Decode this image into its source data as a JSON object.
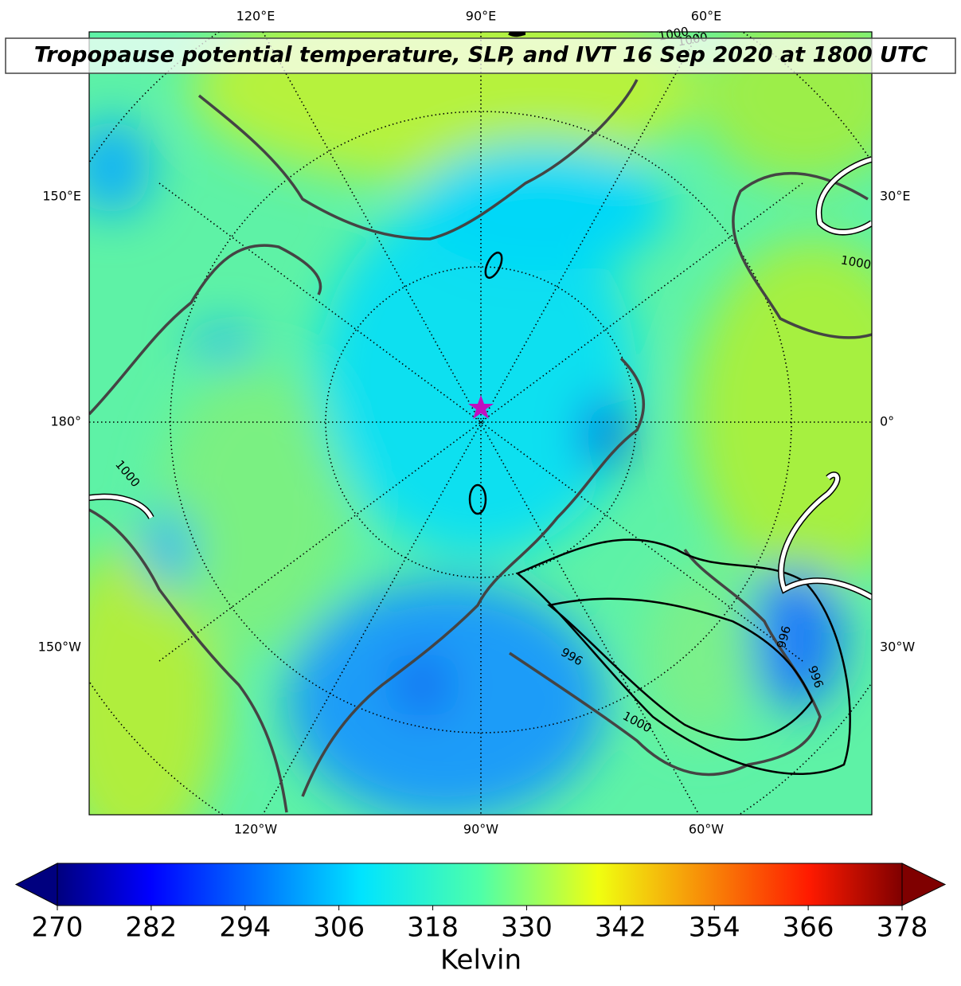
{
  "map": {
    "title": "Tropopause potential temperature, SLP, and IVT 16 Sep 2020 at 1800 UTC",
    "top_labels": [
      "120°E",
      "90°E",
      "60°E"
    ],
    "bottom_labels": [
      "120°W",
      "90°W",
      "60°W"
    ],
    "left_labels": [
      "150°E",
      "180°",
      "150°W"
    ],
    "right_labels": [
      "30°E",
      "0°",
      "30°W"
    ],
    "contour_labels": [
      "1000",
      "1000",
      "1000",
      "996",
      "996",
      "996",
      "1000",
      "1000"
    ]
  },
  "colorbar": {
    "lim": [
      270,
      378
    ],
    "ticks": [
      270,
      282,
      294,
      306,
      318,
      330,
      342,
      354,
      366,
      378
    ],
    "label": "Kelvin"
  }
}
